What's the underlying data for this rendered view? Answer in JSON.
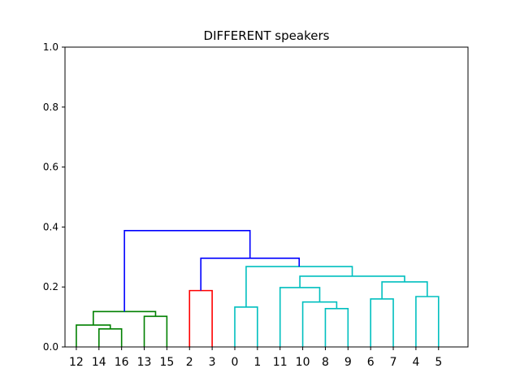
{
  "chart_data": {
    "type": "dendrogram",
    "title": "DIFFERENT speakers",
    "ylim": [
      0,
      1.0
    ],
    "yticks": [
      "0.0",
      "0.2",
      "0.4",
      "0.6",
      "0.8",
      "1.0"
    ],
    "ytick_values": [
      0,
      0.2,
      0.4,
      0.6,
      0.8,
      1.0
    ],
    "leaf_order": [
      "12",
      "14",
      "16",
      "13",
      "15",
      "2",
      "3",
      "0",
      "1",
      "11",
      "10",
      "8",
      "9",
      "6",
      "7",
      "4",
      "5"
    ],
    "colors": {
      "green": "#008000",
      "red": "#ff0000",
      "cyan": "#00bfbf",
      "blue": "#0000ff"
    },
    "links": [
      {
        "left": "14",
        "right": "16",
        "height": 0.06,
        "color": "green"
      },
      {
        "left": "12",
        "right": "14+16",
        "height": 0.073,
        "color": "green"
      },
      {
        "left": "13",
        "right": "15",
        "height": 0.102,
        "color": "green"
      },
      {
        "left": "12+14+16",
        "right": "13+15",
        "height": 0.118,
        "color": "green"
      },
      {
        "left": "2",
        "right": "3",
        "height": 0.188,
        "color": "red"
      },
      {
        "left": "0",
        "right": "1",
        "height": 0.133,
        "color": "cyan"
      },
      {
        "left": "8",
        "right": "9",
        "height": 0.128,
        "color": "cyan"
      },
      {
        "left": "10",
        "right": "8+9",
        "height": 0.15,
        "color": "cyan"
      },
      {
        "left": "11",
        "right": "10+8+9",
        "height": 0.198,
        "color": "cyan"
      },
      {
        "left": "6",
        "right": "7",
        "height": 0.16,
        "color": "cyan"
      },
      {
        "left": "4",
        "right": "5",
        "height": 0.168,
        "color": "cyan"
      },
      {
        "left": "6+7",
        "right": "4+5",
        "height": 0.217,
        "color": "cyan"
      },
      {
        "left": "11+10+8+9",
        "right": "6+7+4+5",
        "height": 0.236,
        "color": "cyan"
      },
      {
        "left": "0+1",
        "right": "11+10+8+9+6+7+4+5",
        "height": 0.268,
        "color": "cyan"
      },
      {
        "left": "2+3",
        "right": "0+1+11+10+8+9+6+7+4+5",
        "height": 0.296,
        "color": "blue"
      },
      {
        "left": "12+14+16+13+15",
        "right": "2+3+0+1+11+10+8+9+6+7+4+5",
        "height": 0.388,
        "color": "blue"
      }
    ]
  }
}
